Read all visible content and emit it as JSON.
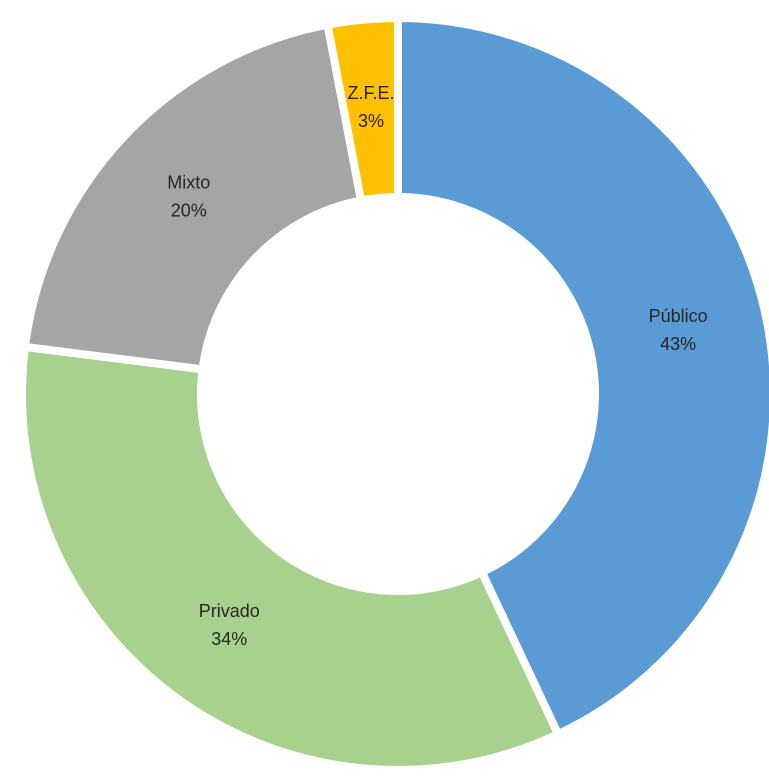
{
  "chart_data": {
    "type": "donut",
    "categories": [
      "Público",
      "Privado",
      "Mixto",
      "Z.F.E."
    ],
    "values": [
      43,
      34,
      20,
      3
    ],
    "value_labels": [
      "43%",
      "34%",
      "20%",
      "3%"
    ],
    "colors": [
      "#5b9bd5",
      "#a9d18e",
      "#a5a5a5",
      "#ffc000"
    ]
  }
}
